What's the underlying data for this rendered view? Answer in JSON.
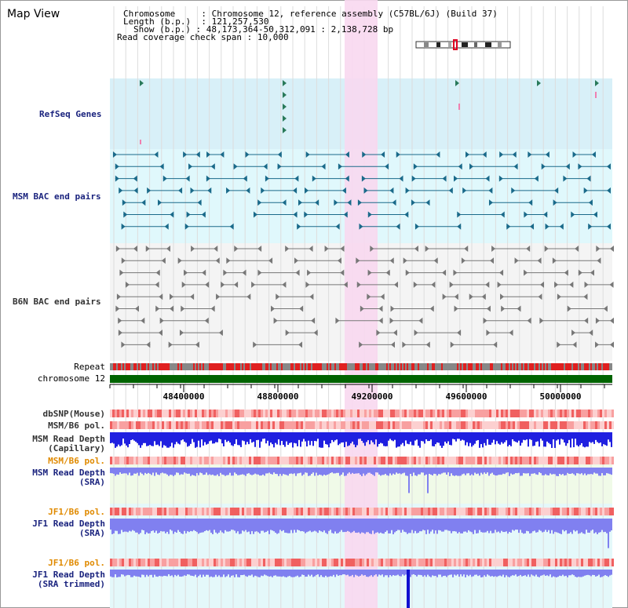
{
  "title": "Map View",
  "info": {
    "chromosome_key": "Chromosome",
    "chromosome_val": "Chromosome 12, reference assembly (C57BL/6J) (Build 37)",
    "length_key": "Length (b.p.)",
    "length_val": "121,257,530",
    "show_key": "Show (b.p.)",
    "show_val": "48,173,364-50,312,091 : 2,138,728 bp",
    "read_cov_key": "Read coverage check span",
    "read_cov_val": "10,000"
  },
  "tracks": {
    "refseq": "RefSeq Genes",
    "msm_bac": "MSM BAC end pairs",
    "b6n_bac": "B6N BAC end pairs",
    "repeat": "Repeat",
    "chromosome": "chromosome 12",
    "dbsnp": "dbSNP(Mouse)",
    "msm_b6_pol_1": "MSM/B6 pol.",
    "msm_read_depth_cap_1": "MSM Read Depth",
    "msm_read_depth_cap_2": "(Capillary)",
    "msm_b6_pol_2": "MSM/B6 pol.",
    "msm_read_depth_sra_1": "MSM Read Depth",
    "msm_read_depth_sra_2": "(SRA)",
    "jf1_b6_pol_1": "JF1/B6 pol.",
    "jf1_read_depth_sra_1": "JF1 Read Depth",
    "jf1_read_depth_sra_2": "(SRA)",
    "jf1_b6_pol_2": "JF1/B6 pol.",
    "jf1_read_depth_trim_1": "JF1 Read Depth",
    "jf1_read_depth_trim_2": "(SRA trimmed)"
  },
  "axis": {
    "ticks": [
      "48400000",
      "48800000",
      "49200000",
      "49600000",
      "50000000"
    ]
  },
  "colors": {
    "highlight": "#f8d8f0",
    "refseq_bg": "#d8f0f8",
    "msm_bg": "#e0f8fc",
    "b6n_bg": "#f4f4f4",
    "chromosome": "#006400",
    "repeat_red": "#e02020",
    "repeat_grey": "#888888",
    "snp": "#f08080",
    "depth_blue": "#2020e0",
    "depth_light": "#8080f0"
  }
}
